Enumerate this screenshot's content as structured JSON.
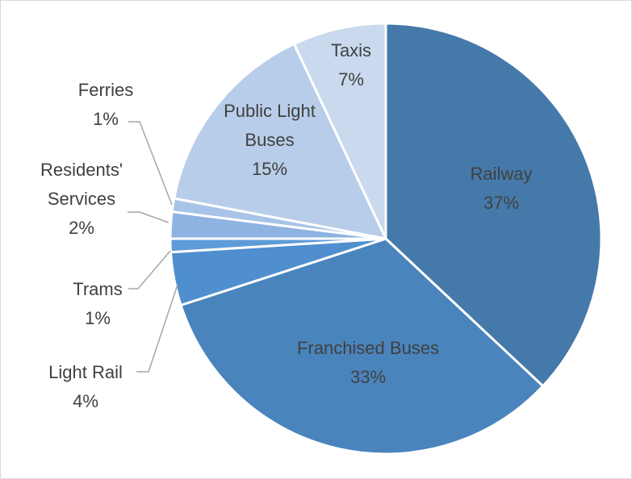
{
  "chart_data": {
    "type": "pie",
    "title": "",
    "slices": [
      {
        "category": "Railway",
        "lines": [
          "Railway"
        ],
        "value": 37,
        "percent_label": "37%",
        "color": "#4579aa"
      },
      {
        "category": "Franchised Buses",
        "lines": [
          "Franchised Buses"
        ],
        "value": 33,
        "percent_label": "33%",
        "color": "#4a84bc"
      },
      {
        "category": "Light Rail",
        "lines": [
          "Light Rail"
        ],
        "value": 4,
        "percent_label": "4%",
        "color": "#4f8fcf"
      },
      {
        "category": "Trams",
        "lines": [
          "Trams"
        ],
        "value": 1,
        "percent_label": "1%",
        "color": "#5e9cd8"
      },
      {
        "category": "Residents' Services",
        "lines": [
          "Residents'",
          "Services"
        ],
        "value": 2,
        "percent_label": "2%",
        "color": "#8db3e2"
      },
      {
        "category": "Ferries",
        "lines": [
          "Ferries"
        ],
        "value": 1,
        "percent_label": "1%",
        "color": "#a7c3e8"
      },
      {
        "category": "Public Light Buses",
        "lines": [
          "Public Light",
          "Buses"
        ],
        "value": 15,
        "percent_label": "15%",
        "color": "#b8cde9"
      },
      {
        "category": "Taxis",
        "lines": [
          "Taxis"
        ],
        "value": 7,
        "percent_label": "7%",
        "color": "#cad9ee"
      }
    ],
    "legend": "none",
    "data_labels": "category and percent"
  }
}
